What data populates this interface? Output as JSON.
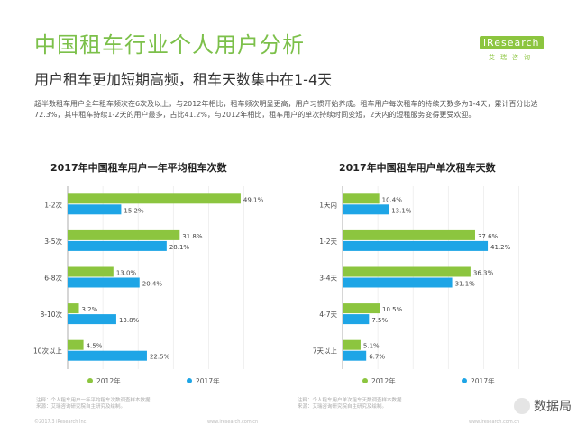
{
  "page": {
    "title": "中国租车行业个人用户分析",
    "subtitle": "用户租车更加短期高频，租车天数集中在1-4天",
    "description": "超半数租车用户全年租车频次在6次及以上，与2012年相比，租车频次明显更高，用户习惯开始养成。租车用户每次租车的持续天数多为1-4天，累计百分比达72.3%，其中租车持续1-2天的用户最多，占比41.2%，与2012年相比，租车用户的单次持续时间变短，2天内的短租服务变得更受欢迎。",
    "logo_text": "iResearch",
    "logo_sub": "艾瑞咨询",
    "footer_left": "©2017.3 iResearch Inc.",
    "footer_right_1": "www.iresearch.com.cn",
    "footer_right_2": "www.iresearch.com.cn",
    "watermark": "数据局",
    "source_1": "注释：个人租车用户一年平均租车次数调查样本数据\n来源：艾瑞咨询研究院自主研究及绘制。",
    "source_2": "注释：个人租车用户单次租车天数调查样本数据\n来源：艾瑞咨询研究院自主研究及绘制。"
  },
  "colors": {
    "y2012": "#8cc53f",
    "y2017": "#1ea5e6",
    "title_green": "#7cc04a"
  },
  "chart_data": [
    {
      "type": "bar",
      "orientation": "horizontal",
      "title": "2017年中国租车用户一年平均租车次数",
      "categories": [
        "1-2次",
        "3-5次",
        "6-8次",
        "8-10次",
        "10次以上"
      ],
      "series": [
        {
          "name": "2012年",
          "values": [
            49.1,
            31.8,
            13.0,
            3.2,
            4.5
          ]
        },
        {
          "name": "2017年",
          "values": [
            15.2,
            28.1,
            20.4,
            13.8,
            22.5
          ]
        }
      ],
      "labels": [
        [
          "49.1%",
          "31.8%",
          "13.0%",
          "3.2%",
          "4.5%"
        ],
        [
          "15.2%",
          "28.1%",
          "20.4%",
          "13.8%",
          "22.5%"
        ]
      ],
      "xlim": [
        0,
        55
      ],
      "grid": true,
      "legend": "bottom"
    },
    {
      "type": "bar",
      "orientation": "horizontal",
      "title": "2017年中国租车用户单次租车天数",
      "categories": [
        "1天内",
        "1-2天",
        "3-4天",
        "4-7天",
        "7天以上"
      ],
      "series": [
        {
          "name": "2012年",
          "values": [
            10.4,
            37.6,
            36.3,
            10.5,
            5.1
          ]
        },
        {
          "name": "2017年",
          "values": [
            13.1,
            41.2,
            31.1,
            7.5,
            6.7
          ]
        }
      ],
      "labels": [
        [
          "10.4%",
          "37.6%",
          "36.3%",
          "10.5%",
          "5.1%"
        ],
        [
          "13.1%",
          "41.2%",
          "31.1%",
          "7.5%",
          "6.7%"
        ]
      ],
      "xlim": [
        0,
        55
      ],
      "grid": true,
      "legend": "bottom"
    }
  ]
}
